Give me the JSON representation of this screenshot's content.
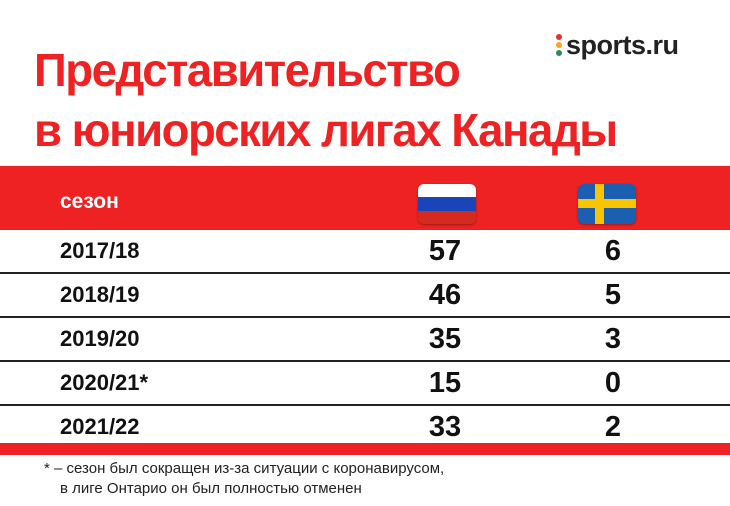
{
  "title": {
    "line1": "Представительство",
    "line2": "в юниорских лигах Канады"
  },
  "logo": {
    "text": "sports.ru",
    "dot_colors": [
      "#e8312f",
      "#f5a623",
      "#2e8b57"
    ]
  },
  "colors": {
    "accent": "#ee2222",
    "text": "#111111",
    "ru_white": "#ffffff",
    "ru_blue": "#1a45b8",
    "ru_red": "#d52b1e",
    "se_blue": "#1c5fb0",
    "se_yellow": "#f7c600"
  },
  "table": {
    "header": {
      "season": "сезон",
      "col_ru_icon": "russia-flag-icon",
      "col_se_icon": "sweden-flag-icon"
    },
    "rows": [
      {
        "season": "2017/18",
        "ru": "57",
        "se": "6"
      },
      {
        "season": "2018/19",
        "ru": "46",
        "se": "5"
      },
      {
        "season": "2019/20",
        "ru": "35",
        "se": "3"
      },
      {
        "season": "2020/21*",
        "ru": "15",
        "se": "0"
      },
      {
        "season": "2021/22",
        "ru": "33",
        "se": "2"
      }
    ]
  },
  "footnote": {
    "line1": "* –  сезон был сокращен из-за ситуации с коронавирусом,",
    "line2": "в лиге Онтарио он был полностью отменен"
  }
}
